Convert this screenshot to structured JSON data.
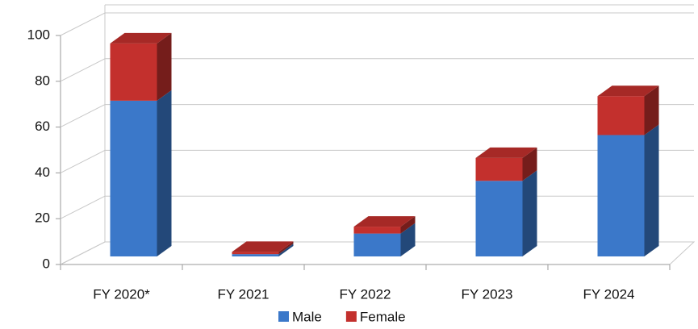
{
  "chart_data": {
    "type": "bar3d_stacked",
    "categories": [
      "FY 2020*",
      "FY 2021",
      "FY 2022",
      "FY 2023",
      "FY 2024"
    ],
    "series": [
      {
        "name": "Male",
        "color": "#3b78c9",
        "values": [
          68,
          1,
          10,
          33,
          53
        ]
      },
      {
        "name": "Female",
        "color": "#c3302d",
        "values": [
          25,
          1,
          3,
          10,
          17
        ]
      }
    ],
    "ylim": [
      0,
      100
    ],
    "yticks": [
      0,
      20,
      40,
      60,
      80,
      100
    ],
    "grid": true,
    "legend": "bottom"
  }
}
